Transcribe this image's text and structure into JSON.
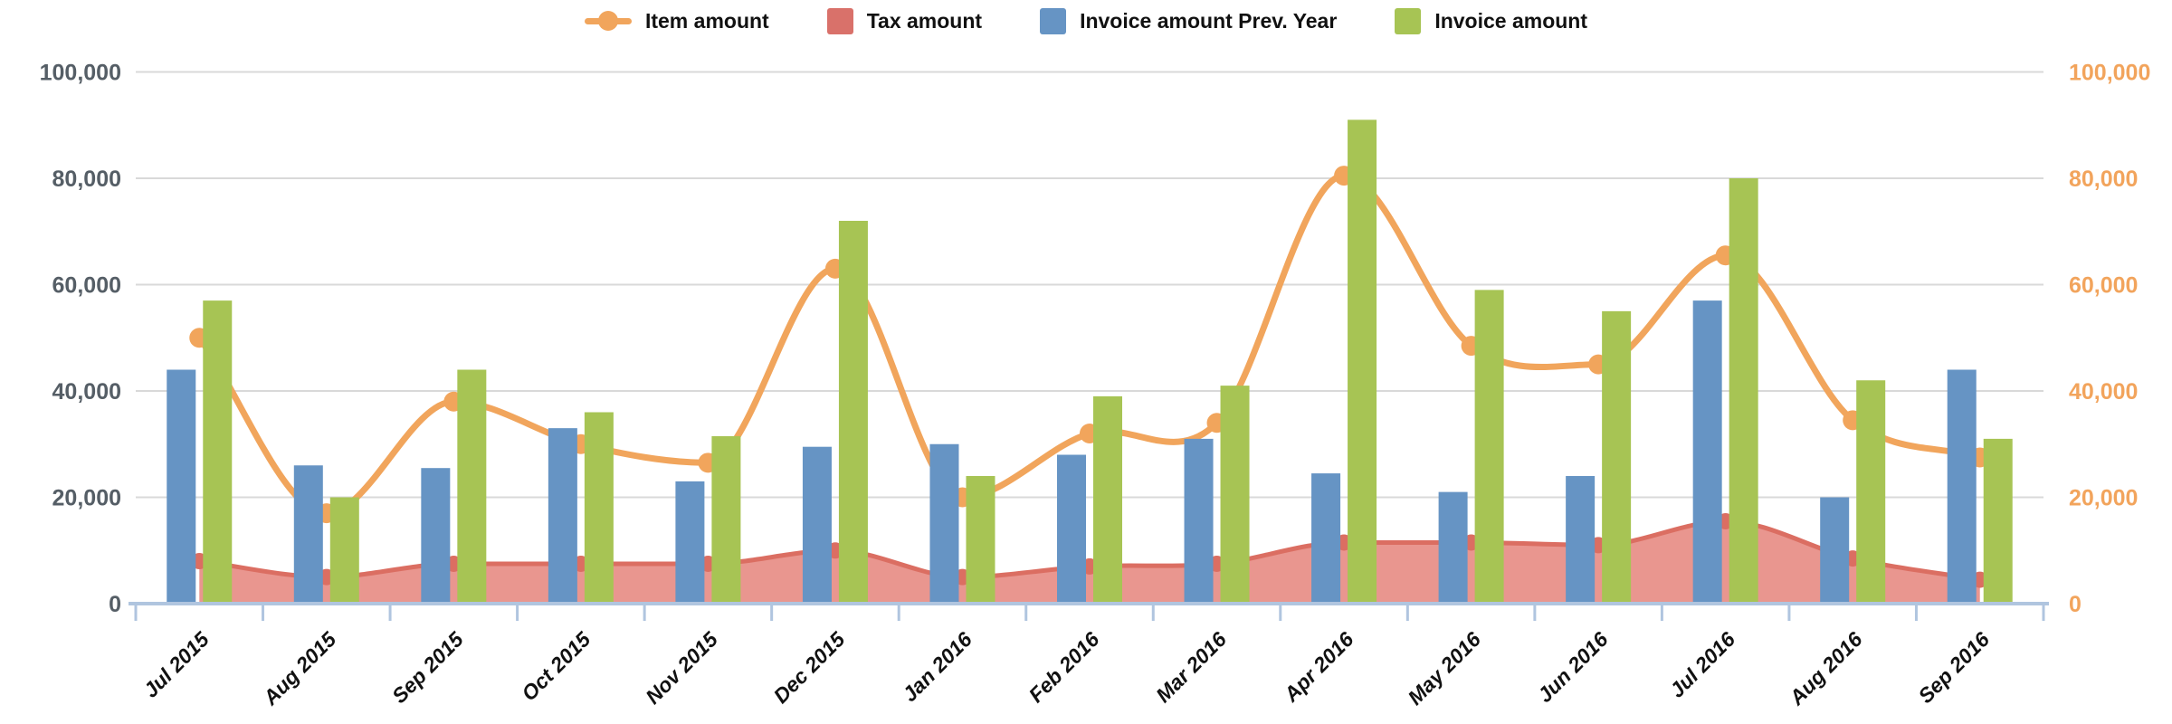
{
  "legend": {
    "items": [
      {
        "label": "Item amount",
        "type": "line",
        "color": "#F1A55C"
      },
      {
        "label": "Tax amount",
        "type": "square",
        "color": "#D9716A"
      },
      {
        "label": "Invoice amount Prev. Year",
        "type": "square",
        "color": "#6694C4"
      },
      {
        "label": "Invoice amount",
        "type": "square",
        "color": "#A7C454"
      }
    ]
  },
  "chart_data": {
    "type": "combo",
    "categories": [
      "Jul 2015",
      "Aug 2015",
      "Sep 2015",
      "Oct 2015",
      "Nov 2015",
      "Dec 2015",
      "Jan 2016",
      "Feb 2016",
      "Mar 2016",
      "Apr 2016",
      "May 2016",
      "Jun 2016",
      "Jul 2016",
      "Aug 2016",
      "Sep 2016"
    ],
    "series": [
      {
        "name": "Item amount",
        "type": "line",
        "color": "#F1A55C",
        "marker": "circle",
        "values": [
          50000,
          17000,
          38000,
          30000,
          26500,
          63000,
          20000,
          32000,
          34000,
          80500,
          48500,
          45000,
          65500,
          34500,
          27500
        ]
      },
      {
        "name": "Tax amount",
        "type": "area",
        "color": "#D9716A",
        "fill": "#E9968F",
        "stroke": "#DB6E62",
        "values": [
          8000,
          5000,
          7500,
          7500,
          7500,
          10000,
          5000,
          7000,
          7500,
          11500,
          11500,
          11000,
          15500,
          8500,
          4500
        ]
      },
      {
        "name": "Invoice amount Prev. Year",
        "type": "bar",
        "color": "#6694C4",
        "values": [
          44000,
          26000,
          25500,
          33000,
          23000,
          29500,
          30000,
          28000,
          31000,
          24500,
          21000,
          24000,
          57000,
          20000,
          44000
        ]
      },
      {
        "name": "Invoice amount",
        "type": "bar",
        "color": "#A7C454",
        "values": [
          57000,
          20000,
          44000,
          36000,
          31500,
          72000,
          24000,
          39000,
          41000,
          91000,
          59000,
          55000,
          80000,
          42000,
          31000
        ]
      }
    ],
    "left_axis": {
      "min": 0,
      "max": 100000,
      "tick_interval": 20000,
      "label_color": "#555E66",
      "tick_labels": [
        "0",
        "20,000",
        "40,000",
        "60,000",
        "80,000",
        "100,000"
      ]
    },
    "right_axis": {
      "min": 0,
      "max": 100000,
      "tick_interval": 20000,
      "label_color": "#F2A45C",
      "tick_labels": [
        "0",
        "20,000",
        "40,000",
        "60,000",
        "80,000",
        "100,000"
      ]
    },
    "grid": true,
    "grid_color": "#D9D9D9",
    "axis_line_color": "#B0C5DF",
    "x_label_color": "#111111",
    "legend_position": "top"
  }
}
